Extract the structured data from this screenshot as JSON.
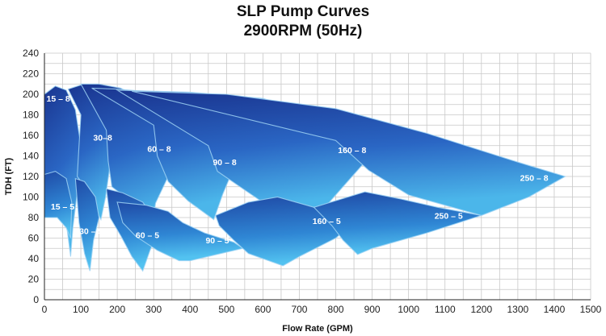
{
  "chart_data": {
    "type": "area",
    "title": "SLP Pump Curves",
    "subtitle": "2900RPM (50Hz)",
    "xlabel": "Flow Rate (GPM)",
    "ylabel": "TDH (FT)",
    "xlim": [
      0,
      1500
    ],
    "ylim": [
      0,
      240
    ],
    "xticks": [
      0,
      100,
      200,
      300,
      400,
      500,
      600,
      700,
      800,
      900,
      1000,
      1100,
      1200,
      1300,
      1400,
      1500
    ],
    "yticks": [
      0,
      20,
      40,
      60,
      80,
      100,
      120,
      140,
      160,
      180,
      200,
      220,
      240
    ],
    "grid": true,
    "colors": {
      "dark": "#1a3590",
      "mid": "#2a66c4",
      "light": "#4bb6ea",
      "edge": "#9fd4f5"
    },
    "series": [
      {
        "name": "15 – 8",
        "points": [
          [
            0,
            200
          ],
          [
            30,
            208
          ],
          [
            60,
            204
          ],
          [
            85,
            185
          ],
          [
            100,
            150
          ],
          [
            95,
            118
          ],
          [
            78,
            70
          ],
          [
            72,
            42
          ],
          [
            55,
            88
          ],
          [
            30,
            108
          ],
          [
            0,
            113
          ]
        ]
      },
      {
        "name": "30–8",
        "points": [
          [
            65,
            205
          ],
          [
            100,
            209
          ],
          [
            140,
            206
          ],
          [
            165,
            190
          ],
          [
            185,
            165
          ],
          [
            178,
            125
          ],
          [
            168,
            100
          ],
          [
            155,
            78
          ],
          [
            138,
            90
          ],
          [
            115,
            108
          ],
          [
            90,
            120
          ],
          [
            95,
            150
          ],
          [
            100,
            180
          ]
        ]
      },
      {
        "name": "60 – 8",
        "points": [
          [
            100,
            210
          ],
          [
            150,
            210
          ],
          [
            210,
            206
          ],
          [
            260,
            196
          ],
          [
            310,
            176
          ],
          [
            370,
            146
          ],
          [
            340,
            120
          ],
          [
            305,
            94
          ],
          [
            295,
            68
          ],
          [
            275,
            82
          ],
          [
            240,
            95
          ],
          [
            185,
            110
          ],
          [
            175,
            135
          ],
          [
            170,
            165
          ]
        ]
      },
      {
        "name": "90 – 8",
        "points": [
          [
            130,
            206
          ],
          [
            200,
            205
          ],
          [
            300,
            202
          ],
          [
            400,
            194
          ],
          [
            480,
            180
          ],
          [
            545,
            148
          ],
          [
            520,
            128
          ],
          [
            490,
            103
          ],
          [
            465,
            78
          ],
          [
            395,
            96
          ],
          [
            340,
            115
          ],
          [
            310,
            140
          ],
          [
            300,
            170
          ]
        ]
      },
      {
        "name": "160 – 8",
        "points": [
          [
            200,
            204
          ],
          [
            400,
            202
          ],
          [
            600,
            196
          ],
          [
            800,
            174
          ],
          [
            920,
            148
          ],
          [
            870,
            130
          ],
          [
            820,
            110
          ],
          [
            780,
            94
          ],
          [
            700,
            82
          ],
          [
            620,
            90
          ],
          [
            545,
            108
          ],
          [
            475,
            125
          ],
          [
            450,
            150
          ]
        ]
      },
      {
        "name": "250 – 8",
        "points": [
          [
            240,
            203
          ],
          [
            500,
            200
          ],
          [
            800,
            186
          ],
          [
            1050,
            162
          ],
          [
            1300,
            134
          ],
          [
            1430,
            120
          ],
          [
            1330,
            100
          ],
          [
            1200,
            82
          ],
          [
            1000,
            102
          ],
          [
            890,
            126
          ],
          [
            800,
            155
          ]
        ]
      },
      {
        "name": "15 – 5",
        "points": [
          [
            0,
            122
          ],
          [
            30,
            125
          ],
          [
            60,
            118
          ],
          [
            75,
            95
          ],
          [
            72,
            60
          ],
          [
            60,
            70
          ],
          [
            35,
            80
          ],
          [
            0,
            80
          ]
        ]
      },
      {
        "name": "30 – 5",
        "points": [
          [
            85,
            118
          ],
          [
            110,
            115
          ],
          [
            140,
            100
          ],
          [
            150,
            80
          ],
          [
            135,
            58
          ],
          [
            125,
            28
          ],
          [
            110,
            45
          ],
          [
            95,
            75
          ]
        ]
      },
      {
        "name": "60 – 5",
        "points": [
          [
            170,
            108
          ],
          [
            215,
            104
          ],
          [
            270,
            95
          ],
          [
            300,
            80
          ],
          [
            310,
            65
          ],
          [
            290,
            48
          ],
          [
            270,
            28
          ],
          [
            240,
            42
          ],
          [
            210,
            62
          ],
          [
            180,
            80
          ]
        ]
      },
      {
        "name": "90 – 5",
        "points": [
          [
            200,
            95
          ],
          [
            280,
            92
          ],
          [
            340,
            86
          ],
          [
            380,
            75
          ],
          [
            440,
            65
          ],
          [
            520,
            56
          ],
          [
            545,
            50
          ],
          [
            400,
            38
          ],
          [
            370,
            38
          ],
          [
            310,
            48
          ],
          [
            250,
            62
          ],
          [
            215,
            75
          ]
        ]
      },
      {
        "name": "160 – 5",
        "points": [
          [
            470,
            82
          ],
          [
            560,
            95
          ],
          [
            640,
            100
          ],
          [
            720,
            92
          ],
          [
            790,
            85
          ],
          [
            860,
            78
          ],
          [
            800,
            60
          ],
          [
            700,
            42
          ],
          [
            655,
            33
          ],
          [
            560,
            45
          ],
          [
            520,
            58
          ],
          [
            480,
            72
          ]
        ]
      },
      {
        "name": "250 – 5",
        "points": [
          [
            740,
            90
          ],
          [
            880,
            105
          ],
          [
            980,
            98
          ],
          [
            1080,
            90
          ],
          [
            1200,
            82
          ],
          [
            1050,
            65
          ],
          [
            900,
            50
          ],
          [
            860,
            44
          ],
          [
            820,
            58
          ],
          [
            790,
            72
          ]
        ]
      }
    ],
    "labels": [
      {
        "text": "15 – 8",
        "x": 38,
        "y": 196
      },
      {
        "text": "30–8",
        "x": 160,
        "y": 158
      },
      {
        "text": "60 – 8",
        "x": 315,
        "y": 147
      },
      {
        "text": "90 – 8",
        "x": 495,
        "y": 134
      },
      {
        "text": "160 – 8",
        "x": 845,
        "y": 146
      },
      {
        "text": "250 – 8",
        "x": 1345,
        "y": 119
      },
      {
        "text": "15 – 5",
        "x": 50,
        "y": 91
      },
      {
        "text": "30 – 5",
        "x": 128,
        "y": 67
      },
      {
        "text": "60 – 5",
        "x": 283,
        "y": 63
      },
      {
        "text": "90 – 5",
        "x": 475,
        "y": 58
      },
      {
        "text": "160 – 5",
        "x": 775,
        "y": 77
      },
      {
        "text": "250 – 5",
        "x": 1110,
        "y": 82
      }
    ]
  }
}
